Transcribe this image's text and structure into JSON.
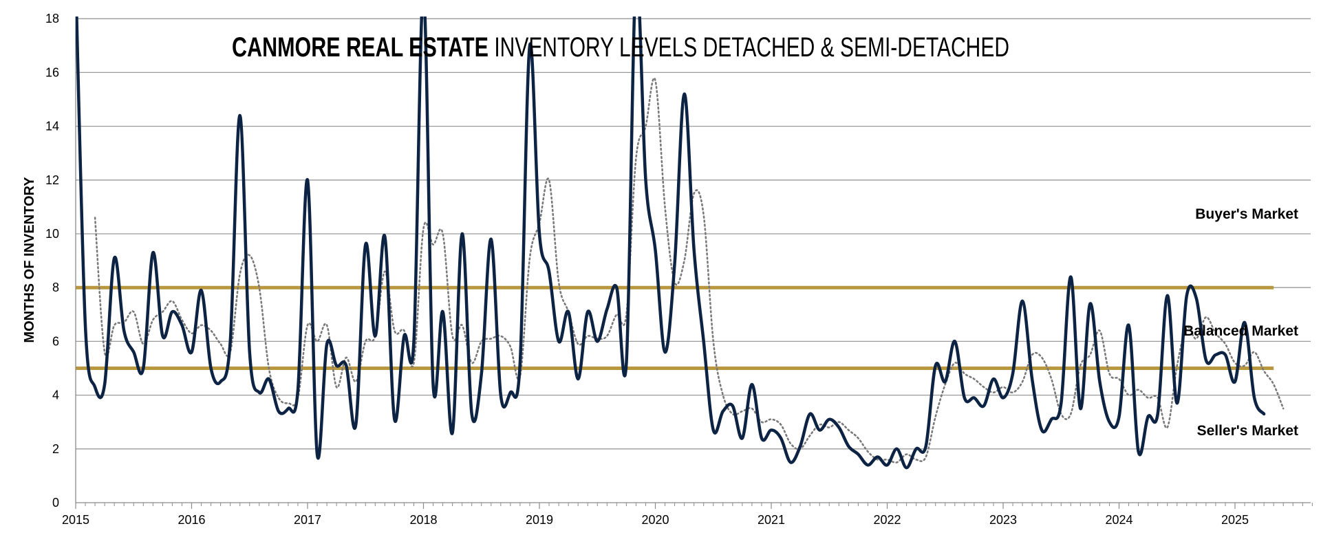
{
  "chart_data": {
    "type": "line",
    "title_bold": "CANMORE REAL ESTATE",
    "title_rest": " INVENTORY LEVELS DETACHED & SEMI-DETACHED",
    "xlabel": "",
    "ylabel": "MONTHS OF INVENTORY",
    "ylim": [
      0,
      18
    ],
    "yticks": [
      0,
      2,
      4,
      6,
      8,
      10,
      12,
      14,
      16,
      18
    ],
    "xlim": [
      "2015-01",
      "2025-09"
    ],
    "xtick_labels": [
      "2015",
      "2016",
      "2017",
      "2018",
      "2019",
      "2020",
      "2021",
      "2022",
      "2023",
      "2024",
      "2025"
    ],
    "grid": true,
    "colors": {
      "monthly": "#0d2344",
      "average": "#7a7a7a",
      "threshold": "#b8973f"
    },
    "thresholds": [
      {
        "value": 8,
        "from": "2015-01",
        "to": "2025-05"
      },
      {
        "value": 5,
        "from": "2015-01",
        "to": "2025-05"
      }
    ],
    "zone_labels": [
      "Buyer's Market",
      "Balanced Market",
      "Seller's Market"
    ],
    "series": [
      {
        "style": "solid",
        "x": [
          "2015-01",
          "2015-02",
          "2015-03",
          "2015-04",
          "2015-05",
          "2015-06",
          "2015-07",
          "2015-08",
          "2015-09",
          "2015-10",
          "2015-11",
          "2015-12",
          "2016-01",
          "2016-02",
          "2016-03",
          "2016-04",
          "2016-05",
          "2016-06",
          "2016-07",
          "2016-08",
          "2016-09",
          "2016-10",
          "2016-11",
          "2016-12",
          "2017-01",
          "2017-02",
          "2017-03",
          "2017-04",
          "2017-05",
          "2017-06",
          "2017-07",
          "2017-08",
          "2017-09",
          "2017-10",
          "2017-11",
          "2017-12",
          "2018-01",
          "2018-02",
          "2018-03",
          "2018-04",
          "2018-05",
          "2018-06",
          "2018-07",
          "2018-08",
          "2018-09",
          "2018-10",
          "2018-11",
          "2018-12",
          "2019-01",
          "2019-02",
          "2019-03",
          "2019-04",
          "2019-05",
          "2019-06",
          "2019-07",
          "2019-08",
          "2019-09",
          "2019-10",
          "2019-11",
          "2019-12",
          "2020-01",
          "2020-02",
          "2020-03",
          "2020-04",
          "2020-05",
          "2020-06",
          "2020-07",
          "2020-08",
          "2020-09",
          "2020-10",
          "2020-11",
          "2020-12",
          "2021-01",
          "2021-02",
          "2021-03",
          "2021-04",
          "2021-05",
          "2021-06",
          "2021-07",
          "2021-08",
          "2021-09",
          "2021-10",
          "2021-11",
          "2021-12",
          "2022-01",
          "2022-02",
          "2022-03",
          "2022-04",
          "2022-05",
          "2022-06",
          "2022-07",
          "2022-08",
          "2022-09",
          "2022-10",
          "2022-11",
          "2022-12",
          "2023-01",
          "2023-02",
          "2023-03",
          "2023-04",
          "2023-05",
          "2023-06",
          "2023-07",
          "2023-08",
          "2023-09",
          "2023-10",
          "2023-11",
          "2023-12",
          "2024-01",
          "2024-02",
          "2024-03",
          "2024-04",
          "2024-05",
          "2024-06",
          "2024-07",
          "2024-08",
          "2024-09",
          "2024-10",
          "2024-11",
          "2024-12",
          "2025-01",
          "2025-02",
          "2025-03",
          "2025-04"
        ],
        "values": [
          19.5,
          6.6,
          4.3,
          4.4,
          9.1,
          6.4,
          5.6,
          5.0,
          9.3,
          6.2,
          7.1,
          6.6,
          5.6,
          7.9,
          5.0,
          4.5,
          6.0,
          14.4,
          5.6,
          4.1,
          4.6,
          3.4,
          3.5,
          4.2,
          12.0,
          1.8,
          5.9,
          5.1,
          5.1,
          2.9,
          9.6,
          6.2,
          9.9,
          3.1,
          6.2,
          6.0,
          19.0,
          4.4,
          7.1,
          2.6,
          10.0,
          3.3,
          4.8,
          9.8,
          4.0,
          4.1,
          5.2,
          17.0,
          10.0,
          8.6,
          6.0,
          7.1,
          4.6,
          7.1,
          6.0,
          7.2,
          8.0,
          5.2,
          19.5,
          12.0,
          9.4,
          5.6,
          8.9,
          15.2,
          9.4,
          6.0,
          2.7,
          3.4,
          3.6,
          2.4,
          4.4,
          2.4,
          2.7,
          2.4,
          1.5,
          2.1,
          3.3,
          2.7,
          3.1,
          2.8,
          2.1,
          1.8,
          1.4,
          1.7,
          1.4,
          2.0,
          1.3,
          2.0,
          2.1,
          5.1,
          4.5,
          6.0,
          3.9,
          3.9,
          3.6,
          4.6,
          3.9,
          4.8,
          7.5,
          4.6,
          2.7,
          3.1,
          3.7,
          8.4,
          3.5,
          7.4,
          4.5,
          3.0,
          3.2,
          6.6,
          1.9,
          3.2,
          3.3,
          7.7,
          3.7,
          7.7,
          7.6,
          5.3,
          5.5,
          5.5,
          4.5,
          6.7,
          3.9,
          3.3
        ]
      },
      {
        "style": "dotted",
        "x": [
          "2015-03",
          "2015-04",
          "2015-05",
          "2015-06",
          "2015-07",
          "2015-08",
          "2015-09",
          "2015-10",
          "2015-11",
          "2015-12",
          "2016-01",
          "2016-02",
          "2016-03",
          "2016-04",
          "2016-05",
          "2016-06",
          "2016-07",
          "2016-08",
          "2016-09",
          "2016-10",
          "2016-11",
          "2016-12",
          "2017-01",
          "2017-02",
          "2017-03",
          "2017-04",
          "2017-05",
          "2017-06",
          "2017-07",
          "2017-08",
          "2017-09",
          "2017-10",
          "2017-11",
          "2017-12",
          "2018-01",
          "2018-02",
          "2018-03",
          "2018-04",
          "2018-05",
          "2018-06",
          "2018-07",
          "2018-08",
          "2018-09",
          "2018-10",
          "2018-11",
          "2018-12",
          "2019-01",
          "2019-02",
          "2019-03",
          "2019-04",
          "2019-05",
          "2019-06",
          "2019-07",
          "2019-08",
          "2019-09",
          "2019-10",
          "2019-11",
          "2019-12",
          "2020-01",
          "2020-02",
          "2020-03",
          "2020-04",
          "2020-05",
          "2020-06",
          "2020-07",
          "2020-08",
          "2020-09",
          "2020-10",
          "2020-11",
          "2020-12",
          "2021-01",
          "2021-02",
          "2021-03",
          "2021-04",
          "2021-05",
          "2021-06",
          "2021-07",
          "2021-08",
          "2021-09",
          "2021-10",
          "2021-11",
          "2021-12",
          "2022-01",
          "2022-02",
          "2022-03",
          "2022-04",
          "2022-05",
          "2022-06",
          "2022-07",
          "2022-08",
          "2022-09",
          "2022-10",
          "2022-11",
          "2022-12",
          "2023-01",
          "2023-02",
          "2023-03",
          "2023-04",
          "2023-05",
          "2023-06",
          "2023-07",
          "2023-08",
          "2023-09",
          "2023-10",
          "2023-11",
          "2023-12",
          "2024-01",
          "2024-02",
          "2024-03",
          "2024-04",
          "2024-05",
          "2024-06",
          "2024-07",
          "2024-08",
          "2024-09",
          "2024-10",
          "2024-11",
          "2024-12",
          "2025-01",
          "2025-02",
          "2025-03",
          "2025-04",
          "2025-05",
          "2025-06"
        ],
        "values": [
          10.6,
          5.6,
          6.6,
          6.7,
          7.1,
          5.9,
          6.8,
          7.1,
          7.5,
          6.8,
          6.3,
          6.6,
          6.4,
          5.9,
          5.6,
          8.5,
          9.2,
          8.0,
          5.0,
          3.9,
          3.7,
          3.9,
          6.6,
          6.0,
          6.6,
          4.3,
          5.4,
          4.5,
          6.0,
          6.2,
          8.6,
          6.4,
          6.4,
          5.2,
          10.2,
          9.6,
          10.0,
          6.2,
          6.6,
          5.2,
          6.0,
          6.1,
          6.2,
          5.8,
          4.7,
          9.1,
          10.4,
          12.0,
          8.2,
          7.1,
          5.9,
          6.2,
          6.1,
          6.2,
          7.0,
          7.0,
          12.8,
          14.0,
          15.7,
          11.0,
          8.2,
          9.0,
          11.5,
          10.7,
          6.0,
          4.0,
          3.3,
          3.4,
          3.5,
          3.0,
          3.1,
          2.9,
          2.2,
          2.0,
          2.5,
          2.9,
          2.8,
          3.0,
          2.7,
          2.4,
          1.9,
          1.6,
          1.6,
          1.5,
          1.8,
          1.6,
          1.7,
          3.2,
          4.4,
          5.2,
          4.8,
          4.6,
          4.3,
          4.1,
          4.3,
          4.1,
          4.5,
          5.5,
          5.4,
          4.6,
          3.3,
          3.3,
          5.1,
          5.5,
          6.4,
          4.8,
          4.6,
          4.0,
          4.2,
          3.9,
          3.9,
          2.8,
          5.1,
          6.5,
          6.1,
          6.9,
          6.3,
          5.9,
          5.2,
          5.1,
          5.6,
          4.9,
          4.4,
          3.5
        ]
      }
    ]
  }
}
